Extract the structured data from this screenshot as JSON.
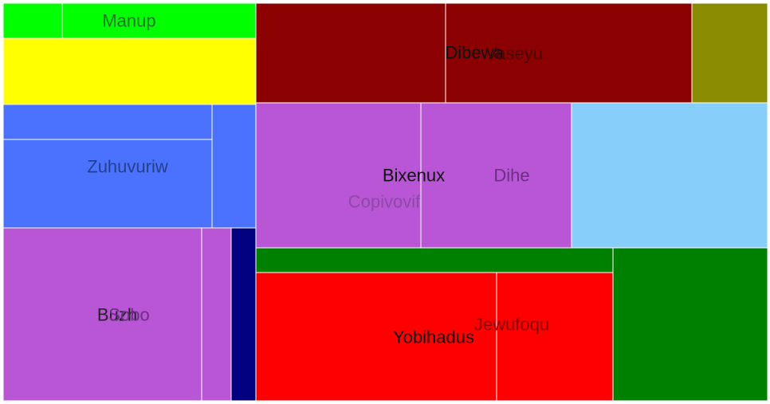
{
  "chart_data": {
    "type": "treemap",
    "title": "",
    "rectangles": [
      {
        "color": "#00ff00"
      },
      {
        "color": "#00ff00"
      },
      {
        "color": "#ffff00"
      },
      {
        "color": "#4a72ff"
      },
      {
        "color": "#4a72ff"
      },
      {
        "color": "#4a72ff"
      },
      {
        "color": "#b856d6"
      },
      {
        "color": "#b856d6"
      },
      {
        "color": "#000080"
      },
      {
        "color": "#8b0000"
      },
      {
        "color": "#8b0000"
      },
      {
        "color": "#8b8b00"
      },
      {
        "color": "#b856d6"
      },
      {
        "color": "#b856d6"
      },
      {
        "color": "#87cefa"
      },
      {
        "color": "#008000"
      },
      {
        "color": "#ff0000"
      },
      {
        "color": "#ff0000"
      },
      {
        "color": "#008000"
      }
    ],
    "labels": [
      {
        "text": "Manup",
        "color": "#1f7a1f"
      },
      {
        "text": "Zuhuvuriw",
        "color": "#25408a"
      },
      {
        "text": "Buzh",
        "color": "#222222"
      },
      {
        "text": "Sobo",
        "color": "#6b2f84"
      },
      {
        "text": "Dibewa",
        "color": "#111111"
      },
      {
        "text": "Vaseyu",
        "color": "#4a0000"
      },
      {
        "text": "Bixenux",
        "color": "#111111"
      },
      {
        "text": "Dihe",
        "color": "#6b2f84"
      },
      {
        "text": "Copivovif",
        "color": "#8a4aa6"
      },
      {
        "text": "Yobihadus",
        "color": "#111111"
      },
      {
        "text": "Jewufoqu",
        "color": "#8b0000"
      }
    ]
  }
}
